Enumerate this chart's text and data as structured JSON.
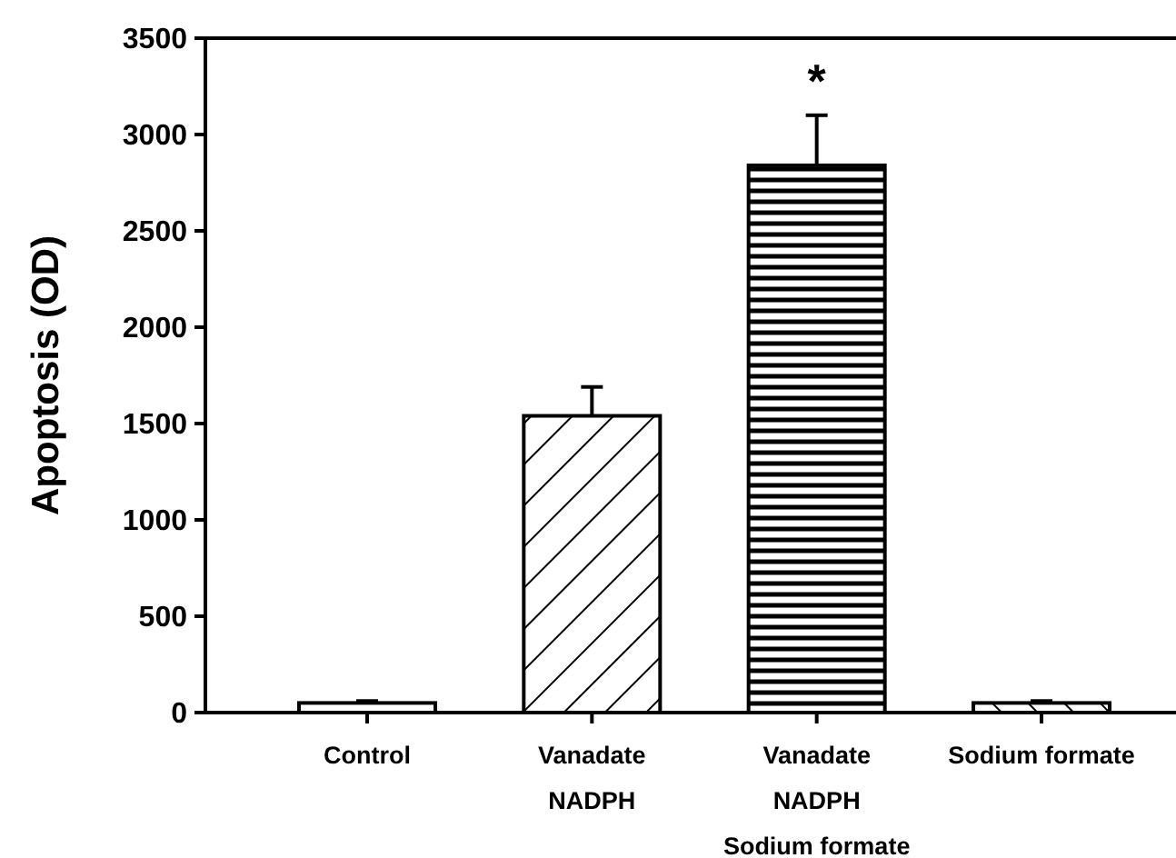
{
  "chart_data": {
    "type": "bar",
    "ylabel": "Apoptosis (OD)",
    "categories": [
      "Control",
      "Vanadate\nNADPH",
      "Vanadate\nNADPH\nSodium formate",
      "Sodium formate"
    ],
    "values": [
      50,
      1540,
      2840,
      50
    ],
    "errors": [
      [
        50,
        60
      ],
      [
        1540,
        1690
      ],
      [
        2840,
        3100
      ],
      [
        50,
        60
      ]
    ],
    "colors": [
      "#ffffff",
      "#ffffff",
      "#ffffff",
      "#ffffff"
    ],
    "ylim": [
      0,
      3500
    ],
    "yticks": [
      0,
      500,
      1000,
      1500,
      2000,
      2500,
      3000,
      3500
    ],
    "annotations": [
      {
        "text": "*",
        "x": "Vanadate\nNADPH\nSodium formate",
        "y": 3100
      }
    ]
  }
}
